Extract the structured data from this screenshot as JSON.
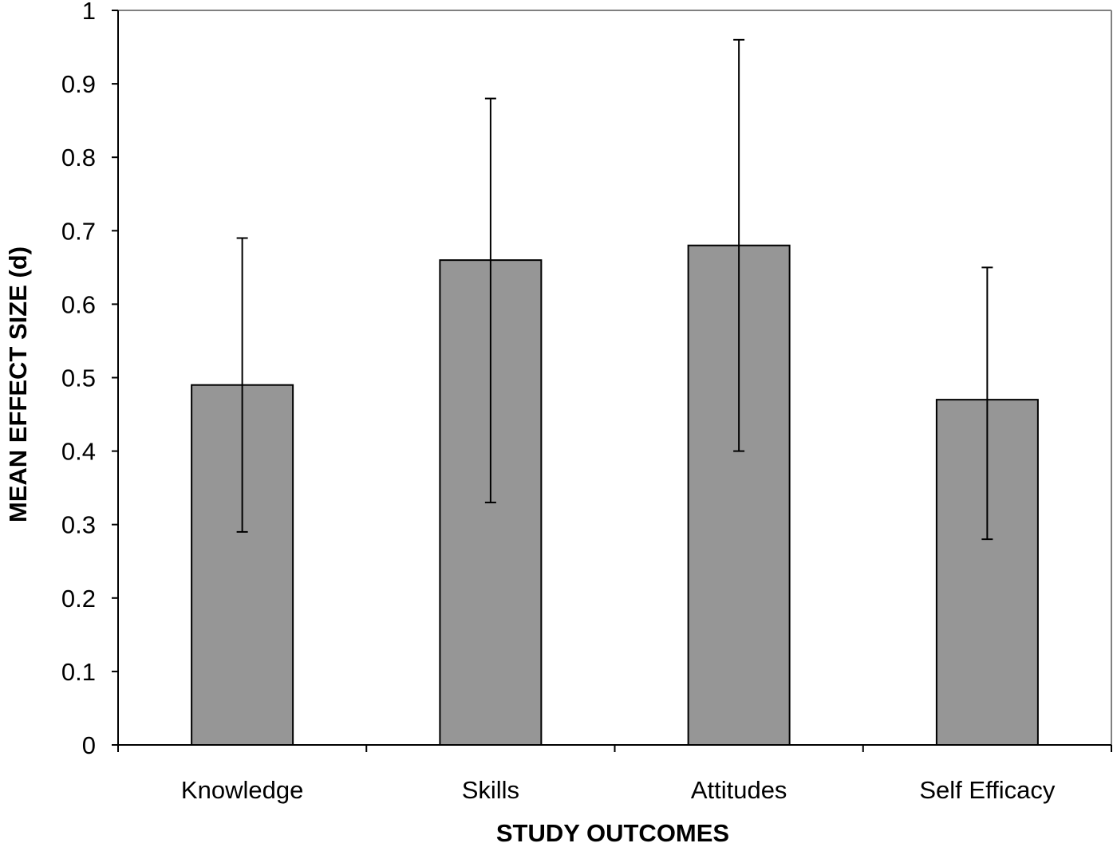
{
  "chart_data": {
    "type": "bar",
    "title": "",
    "xlabel": "STUDY OUTCOMES",
    "ylabel": "MEAN EFFECT SIZE (d)",
    "categories": [
      "Knowledge",
      "Skills",
      "Attitudes",
      "Self Efficacy"
    ],
    "values": [
      0.49,
      0.66,
      0.68,
      0.47
    ],
    "error_low": [
      0.29,
      0.33,
      0.4,
      0.28
    ],
    "error_high": [
      0.69,
      0.88,
      0.96,
      0.65
    ],
    "ylim": [
      0,
      1
    ],
    "yticks": [
      "0",
      "0.1",
      "0.2",
      "0.3",
      "0.4",
      "0.5",
      "0.6",
      "0.7",
      "0.8",
      "0.9",
      "1"
    ],
    "grid": false,
    "legend": "none",
    "colors": {
      "bar_fill": "#969696",
      "bar_stroke": "#000000",
      "axis": "#000000",
      "plot_border": "#808080"
    }
  }
}
